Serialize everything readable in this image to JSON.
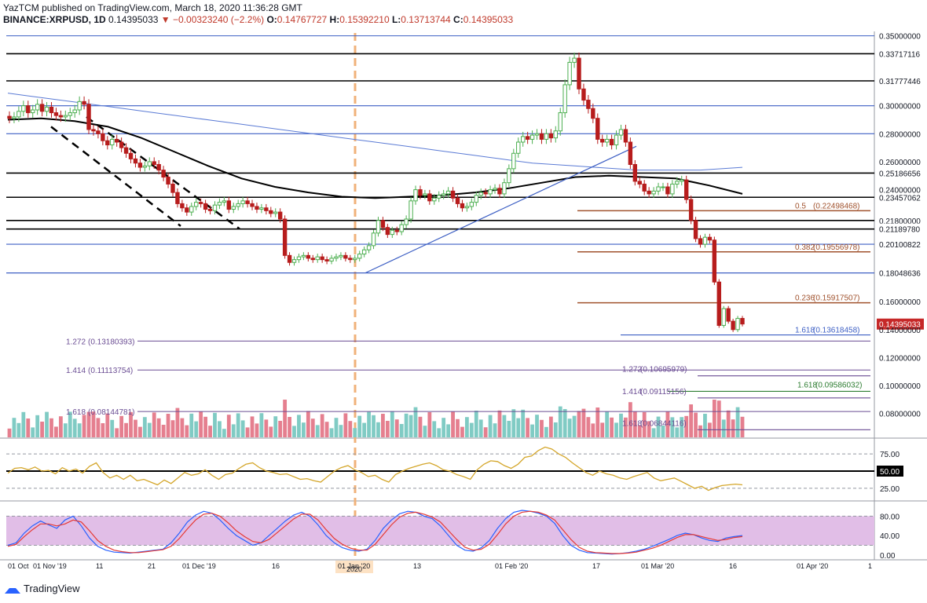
{
  "header": {
    "publish_line": "YazTCM published on TradingView.com, March 18, 2020 11:36:28 GMT",
    "symbol": "BINANCE:XRPUSD, 1D",
    "last": "0.14395033",
    "change": "−0.00323240 (−2.2%)",
    "open_label": "O:",
    "open": "0.14767727",
    "high_label": "H:",
    "high": "0.15392210",
    "low_label": "L:",
    "low": "0.13713744",
    "close_label": "C:",
    "close": "0.14395033"
  },
  "footer": {
    "brand": "TradingView"
  },
  "colors": {
    "up_candle": "#4caf50",
    "down_candle": "#b71c1c",
    "volume_up": "#80cbc4",
    "volume_down": "#e57f8f",
    "ma_slow": "#000000",
    "ma_long": "#5b7bd5",
    "support_blue": "#3d5fc4",
    "fib_brown": "#a0522d",
    "fib_purple": "#6a4c93",
    "rsi_line": "#d4a62a",
    "stoch_k": "#2962ff",
    "stoch_d": "#e53935",
    "stoch_band": "#e1bee7",
    "price_tag_current": "#c62828"
  },
  "chart_data": [
    {
      "type": "candlestick",
      "title": "BINANCE:XRPUSD, 1D",
      "x_tick_labels": [
        "01 Oct",
        "01 Nov '19",
        "11",
        "21",
        "01 Dec '19",
        "16",
        "01 Jan '20",
        "2020",
        "13",
        "01 Feb '20",
        "17",
        "01 Mar '20",
        "16",
        "01 Apr '20",
        "1"
      ],
      "y_tick_labels": [
        "0.35000000",
        "0.26000000",
        "0.24000000",
        "0.16000000",
        "0.14000000",
        "0.12000000",
        "0.10000000",
        "0.08000000"
      ],
      "ylim": [
        0.063,
        0.352
      ],
      "horizontal_levels": [
        {
          "label": "0.33717116",
          "value": 0.33717116
        },
        {
          "label": "0.31777446",
          "value": 0.31777446
        },
        {
          "label": "0.30000000",
          "value": 0.3
        },
        {
          "label": "0.28000000",
          "value": 0.28
        },
        {
          "label": "0.25186656",
          "value": 0.25186656
        },
        {
          "label": "0.23457062",
          "value": 0.23457062
        },
        {
          "label": "0.21800000",
          "value": 0.218
        },
        {
          "label": "0.21189780",
          "value": 0.2118978
        },
        {
          "label": "0.20100822",
          "value": 0.20100822
        },
        {
          "label": "0.18048636",
          "value": 0.18048636
        },
        {
          "label": "0.14395033",
          "value": 0.14395033
        }
      ],
      "fib_retracements": [
        {
          "label": "0.5",
          "text": "(0.22498468)",
          "value": 0.22498468
        },
        {
          "label": "0.382",
          "text": "(0.19556978)",
          "value": 0.19556978
        },
        {
          "label": "0.236",
          "text": "(0.15917507)",
          "value": 0.15917507
        }
      ],
      "fib_extensions_left": [
        {
          "label": "1.272",
          "text": "(0.13180393)",
          "value": 0.13180393
        },
        {
          "label": "1.414",
          "text": "(0.11113754)",
          "value": 0.11113754
        },
        {
          "label": "1.618",
          "text": "(0.08144781)",
          "value": 0.08144781
        }
      ],
      "fib_extensions_right": [
        {
          "label": "1.618",
          "text": "(0.13618458)",
          "value": 0.13618458
        },
        {
          "label": "1.272",
          "text": "(0.10695979)",
          "value": 0.10695979
        },
        {
          "label": "1.618",
          "text": "(0.09586032)",
          "value": 0.09586032
        },
        {
          "label": "1.414",
          "text": "(0.09115156)",
          "value": 0.09115156
        },
        {
          "label": "1.618",
          "text": "(0.06844116)",
          "value": 0.06844116
        }
      ],
      "close_series": [
        0.291,
        0.292,
        0.296,
        0.3,
        0.295,
        0.297,
        0.301,
        0.296,
        0.299,
        0.295,
        0.293,
        0.292,
        0.293,
        0.295,
        0.297,
        0.303,
        0.301,
        0.283,
        0.282,
        0.28,
        0.275,
        0.272,
        0.276,
        0.274,
        0.27,
        0.266,
        0.262,
        0.259,
        0.256,
        0.257,
        0.26,
        0.258,
        0.254,
        0.249,
        0.244,
        0.238,
        0.23,
        0.227,
        0.224,
        0.228,
        0.231,
        0.23,
        0.226,
        0.225,
        0.229,
        0.231,
        0.232,
        0.226,
        0.228,
        0.23,
        0.232,
        0.23,
        0.228,
        0.226,
        0.227,
        0.225,
        0.223,
        0.224,
        0.219,
        0.193,
        0.188,
        0.19,
        0.192,
        0.193,
        0.191,
        0.19,
        0.192,
        0.19,
        0.189,
        0.191,
        0.192,
        0.193,
        0.191,
        0.19,
        0.191,
        0.194,
        0.197,
        0.2,
        0.209,
        0.218,
        0.213,
        0.208,
        0.211,
        0.21,
        0.215,
        0.219,
        0.232,
        0.24,
        0.236,
        0.237,
        0.232,
        0.234,
        0.236,
        0.237,
        0.239,
        0.234,
        0.23,
        0.227,
        0.228,
        0.231,
        0.236,
        0.238,
        0.237,
        0.24,
        0.241,
        0.237,
        0.245,
        0.255,
        0.266,
        0.274,
        0.278,
        0.276,
        0.279,
        0.28,
        0.276,
        0.28,
        0.277,
        0.282,
        0.295,
        0.315,
        0.331,
        0.334,
        0.312,
        0.304,
        0.298,
        0.291,
        0.276,
        0.274,
        0.276,
        0.272,
        0.279,
        0.283,
        0.274,
        0.258,
        0.246,
        0.244,
        0.239,
        0.237,
        0.239,
        0.242,
        0.242,
        0.237,
        0.244,
        0.246,
        0.247,
        0.233,
        0.218,
        0.205,
        0.201,
        0.206,
        0.204,
        0.174,
        0.143,
        0.155,
        0.146,
        0.14,
        0.148,
        0.144
      ],
      "series": [
        {
          "name": "MA long",
          "values": [
            0.309,
            0.307,
            0.305,
            0.303,
            0.301,
            0.299,
            0.297,
            0.295,
            0.293,
            0.291,
            0.289,
            0.287,
            0.285,
            0.283,
            0.281,
            0.279,
            0.277,
            0.275,
            0.273,
            0.271,
            0.269,
            0.267,
            0.265,
            0.263,
            0.261,
            0.259,
            0.258,
            0.257,
            0.256,
            0.255,
            0.254,
            0.254,
            0.254,
            0.254,
            0.255,
            0.256
          ]
        },
        {
          "name": "MA slow",
          "values": [
            0.29,
            0.291,
            0.289,
            0.285,
            0.277,
            0.267,
            0.257,
            0.248,
            0.242,
            0.238,
            0.235,
            0.234,
            0.235,
            0.236,
            0.238,
            0.241,
            0.245,
            0.249,
            0.25,
            0.249,
            0.248,
            0.243,
            0.237
          ]
        }
      ]
    },
    {
      "type": "line",
      "title": "RSI",
      "y_tick_labels": [
        "75.00",
        "50.00",
        "25.00"
      ],
      "ylim": [
        10,
        90
      ],
      "values": [
        47,
        54,
        55,
        52,
        56,
        50,
        51,
        46,
        55,
        50,
        53,
        47,
        57,
        62,
        48,
        40,
        44,
        38,
        44,
        36,
        38,
        34,
        30,
        37,
        32,
        40,
        48,
        44,
        46,
        52,
        44,
        38,
        45,
        47,
        54,
        60,
        62,
        55,
        50,
        48,
        45,
        46,
        42,
        38,
        39,
        36,
        34,
        42,
        50,
        55,
        58,
        52,
        48,
        42,
        44,
        38,
        34,
        45,
        50,
        54,
        57,
        60,
        62,
        58,
        52,
        50,
        45,
        42,
        38,
        52,
        60,
        65,
        64,
        58,
        54,
        60,
        70,
        72,
        80,
        85,
        82,
        75,
        70,
        62,
        55,
        48,
        44,
        50,
        46,
        44,
        40,
        38,
        42,
        45,
        48,
        40,
        36,
        38,
        40,
        35,
        30,
        25,
        28,
        22,
        26,
        29,
        30,
        31,
        30
      ]
    },
    {
      "type": "line",
      "title": "Stoch RSI",
      "y_tick_labels": [
        "80.00",
        "40.00",
        "0.00"
      ],
      "ylim": [
        -5,
        100
      ],
      "series": [
        {
          "name": "K",
          "values": [
            20,
            25,
            45,
            60,
            70,
            62,
            55,
            72,
            80,
            60,
            35,
            18,
            10,
            6,
            5,
            4,
            6,
            8,
            10,
            12,
            25,
            45,
            68,
            82,
            90,
            86,
            72,
            55,
            40,
            30,
            20,
            25,
            40,
            55,
            70,
            82,
            88,
            80,
            62,
            40,
            25,
            15,
            10,
            8,
            12,
            30,
            55,
            72,
            85,
            90,
            88,
            80,
            75,
            60,
            40,
            20,
            10,
            8,
            15,
            30,
            55,
            75,
            88,
            92,
            90,
            86,
            80,
            65,
            40,
            20,
            10,
            5,
            4,
            3,
            2,
            3,
            5,
            8,
            12,
            18,
            25,
            32,
            40,
            45,
            42,
            35,
            30,
            28,
            35,
            38,
            40
          ]
        },
        {
          "name": "D",
          "values": [
            18,
            22,
            38,
            52,
            64,
            64,
            60,
            64,
            72,
            68,
            50,
            30,
            18,
            10,
            7,
            5,
            5,
            7,
            9,
            11,
            18,
            34,
            54,
            72,
            84,
            86,
            80,
            66,
            50,
            38,
            28,
            25,
            32,
            46,
            60,
            74,
            84,
            84,
            72,
            52,
            34,
            22,
            14,
            10,
            10,
            22,
            42,
            62,
            78,
            86,
            88,
            84,
            78,
            68,
            50,
            32,
            16,
            10,
            12,
            22,
            42,
            64,
            80,
            88,
            90,
            88,
            82,
            72,
            52,
            32,
            16,
            8,
            5,
            4,
            3,
            3,
            4,
            6,
            10,
            14,
            20,
            28,
            36,
            42,
            42,
            38,
            34,
            30,
            32,
            36,
            38
          ]
        }
      ]
    }
  ]
}
